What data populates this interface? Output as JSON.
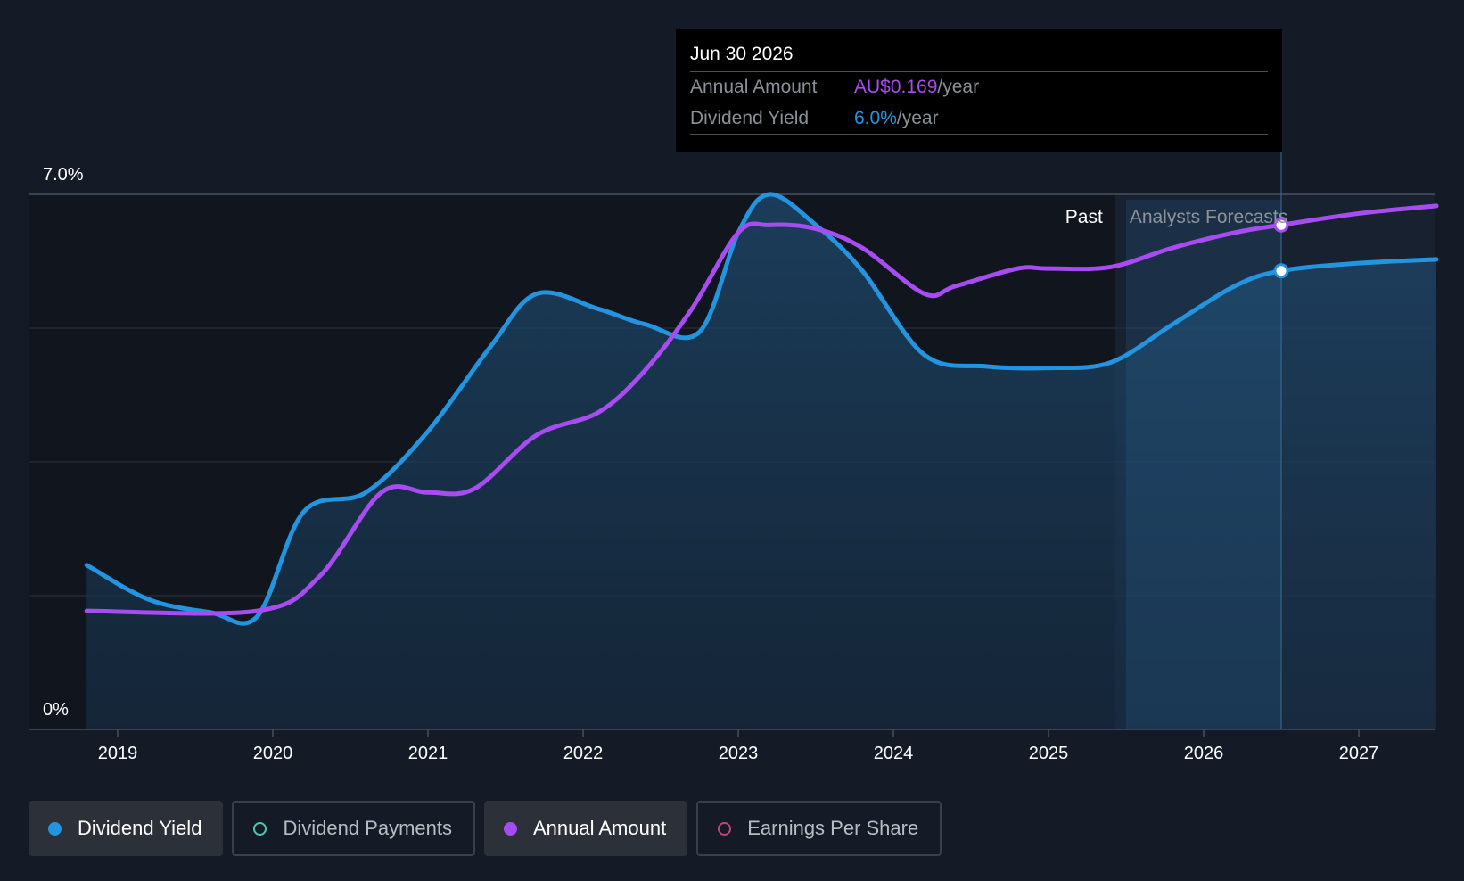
{
  "chart_data": {
    "type": "line",
    "y_top_label": "7.0%",
    "y_bottom_label": "0%",
    "ylim": [
      0,
      7
    ],
    "x_ticks": [
      "2019",
      "2020",
      "2021",
      "2022",
      "2023",
      "2024",
      "2025",
      "2026",
      "2027"
    ],
    "regions": {
      "past_label": "Past",
      "forecast_label": "Analysts Forecasts"
    },
    "series": [
      {
        "name": "Dividend Yield",
        "color": "#2394df",
        "points": [
          [
            2018.8,
            2.15
          ],
          [
            2019.2,
            1.7
          ],
          [
            2019.6,
            1.53
          ],
          [
            2019.9,
            1.48
          ],
          [
            2020.2,
            2.85
          ],
          [
            2020.6,
            3.1
          ],
          [
            2021.0,
            3.9
          ],
          [
            2021.4,
            5.0
          ],
          [
            2021.7,
            5.7
          ],
          [
            2022.1,
            5.5
          ],
          [
            2022.4,
            5.3
          ],
          [
            2022.75,
            5.2
          ],
          [
            2023.0,
            6.5
          ],
          [
            2023.2,
            7.0
          ],
          [
            2023.5,
            6.6
          ],
          [
            2023.8,
            6.0
          ],
          [
            2024.2,
            4.9
          ],
          [
            2024.6,
            4.75
          ],
          [
            2025.0,
            4.73
          ],
          [
            2025.4,
            4.8
          ],
          [
            2025.8,
            5.3
          ],
          [
            2026.2,
            5.8
          ],
          [
            2026.5,
            6.0
          ],
          [
            2027.0,
            6.1
          ],
          [
            2027.5,
            6.15
          ]
        ]
      },
      {
        "name": "Annual Amount",
        "color": "#a64cf0",
        "points": [
          [
            2018.8,
            1.55
          ],
          [
            2019.9,
            1.55
          ],
          [
            2020.3,
            2.0
          ],
          [
            2020.7,
            3.1
          ],
          [
            2021.0,
            3.1
          ],
          [
            2021.3,
            3.15
          ],
          [
            2021.7,
            3.85
          ],
          [
            2022.1,
            4.15
          ],
          [
            2022.4,
            4.7
          ],
          [
            2022.7,
            5.5
          ],
          [
            2023.0,
            6.5
          ],
          [
            2023.2,
            6.6
          ],
          [
            2023.5,
            6.55
          ],
          [
            2023.8,
            6.3
          ],
          [
            2024.2,
            5.7
          ],
          [
            2024.4,
            5.8
          ],
          [
            2024.8,
            6.03
          ],
          [
            2025.0,
            6.03
          ],
          [
            2025.4,
            6.05
          ],
          [
            2025.8,
            6.3
          ],
          [
            2026.2,
            6.5
          ],
          [
            2026.5,
            6.6
          ],
          [
            2027.0,
            6.75
          ],
          [
            2027.5,
            6.85
          ]
        ]
      }
    ],
    "tooltip": {
      "date": "Jun 30 2026",
      "x": 2026.5,
      "rows": [
        {
          "label": "Annual Amount",
          "value": "AU$0.169",
          "suffix": "/year",
          "color": "#a64cf0"
        },
        {
          "label": "Dividend Yield",
          "value": "6.0%",
          "suffix": "/year",
          "color": "#2394df"
        }
      ]
    }
  },
  "legend": [
    {
      "label": "Dividend Yield",
      "color": "#2394df",
      "active": true
    },
    {
      "label": "Dividend Payments",
      "color": "#4ec9b0",
      "active": false
    },
    {
      "label": "Annual Amount",
      "color": "#a64cf0",
      "active": true
    },
    {
      "label": "Earnings Per Share",
      "color": "#c8407a",
      "active": false
    }
  ]
}
